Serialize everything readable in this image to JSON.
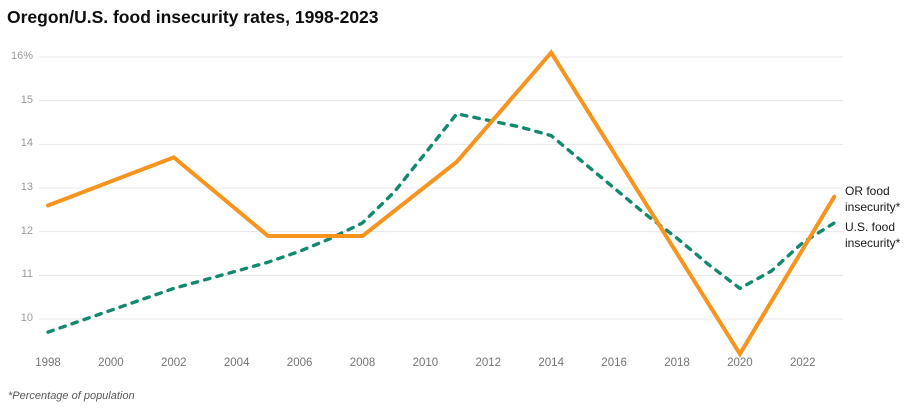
{
  "header": {
    "title": "Oregon/U.S. food insecurity rates, 1998-2023"
  },
  "footer": {
    "note": "*Percentage of population"
  },
  "colors": {
    "background": "#ffffff",
    "grid": "#e7e7e7",
    "title_text": "#0d0d0d",
    "y_tick_text": "#9a9a9a",
    "x_tick_text": "#757575",
    "legend_text": "#191919",
    "footnote_text": "#595959",
    "or_line": "#F7941E",
    "us_line": "#12896E"
  },
  "chart_data": {
    "type": "line",
    "title": "Oregon/U.S. food insecurity rates, 1998-2023",
    "xlabel": "",
    "ylabel": "Percentage of population",
    "xlim": [
      1998,
      2023
    ],
    "ylim": [
      9.0,
      16.3
    ],
    "grid": "horizontal",
    "legend_position": "right-of-line-ends",
    "x_ticks": [
      1998,
      2000,
      2002,
      2004,
      2006,
      2008,
      2010,
      2012,
      2014,
      2016,
      2018,
      2020,
      2022
    ],
    "y_ticks": [
      {
        "value": 16,
        "label": "16%"
      },
      {
        "value": 15,
        "label": "15"
      },
      {
        "value": 14,
        "label": "14"
      },
      {
        "value": 13,
        "label": "13"
      },
      {
        "value": 12,
        "label": "12"
      },
      {
        "value": 11,
        "label": "11"
      },
      {
        "value": 10,
        "label": "10"
      }
    ],
    "series": [
      {
        "name": "OR food insecurity*",
        "color": "#F7941E",
        "line_style": "solid",
        "points": [
          [
            1998,
            12.6
          ],
          [
            2002,
            13.7
          ],
          [
            2005,
            11.9
          ],
          [
            2008,
            11.9
          ],
          [
            2011,
            13.6
          ],
          [
            2014,
            16.1
          ],
          [
            2020,
            9.2
          ],
          [
            2023,
            12.8
          ]
        ]
      },
      {
        "name": "U.S. food insecurity*",
        "color": "#12896E",
        "line_style": "dashed",
        "points": [
          [
            1998,
            9.7
          ],
          [
            2000,
            10.2
          ],
          [
            2002,
            10.7
          ],
          [
            2004,
            11.1
          ],
          [
            2005,
            11.3
          ],
          [
            2006,
            11.55
          ],
          [
            2007,
            11.85
          ],
          [
            2008,
            12.2
          ],
          [
            2009,
            12.9
          ],
          [
            2010,
            13.8
          ],
          [
            2011,
            14.7
          ],
          [
            2012,
            14.55
          ],
          [
            2013,
            14.4
          ],
          [
            2014,
            14.2
          ],
          [
            2015,
            13.6
          ],
          [
            2016,
            13.0
          ],
          [
            2017,
            12.4
          ],
          [
            2018,
            11.85
          ],
          [
            2019,
            11.25
          ],
          [
            2020,
            10.7
          ],
          [
            2021,
            11.1
          ],
          [
            2022,
            11.75
          ],
          [
            2023,
            12.2
          ]
        ]
      }
    ]
  }
}
